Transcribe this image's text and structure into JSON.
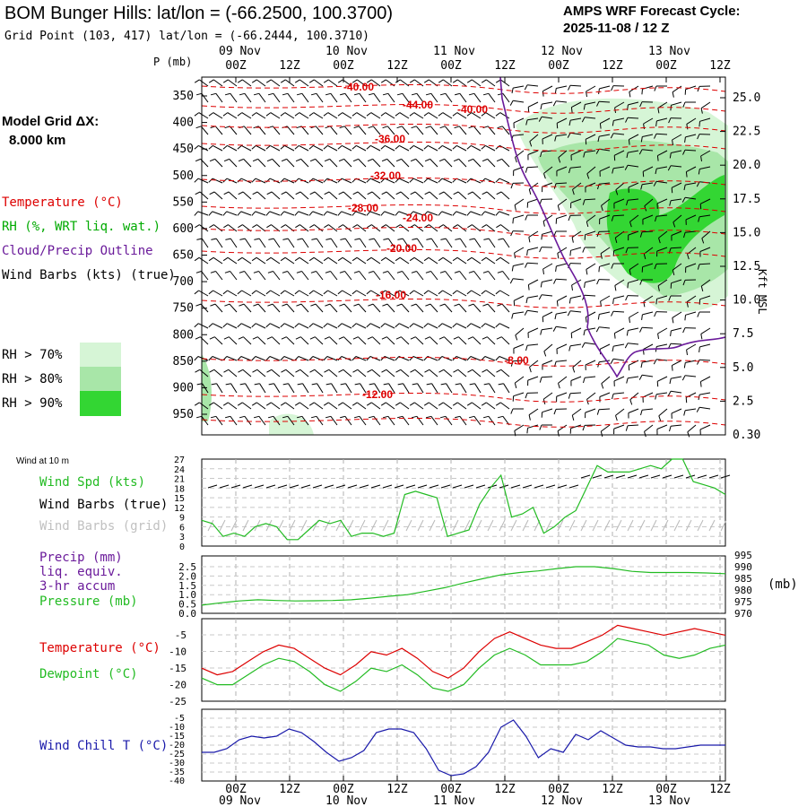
{
  "header": {
    "title": "BOM Bunger Hills:  lat/lon = (-66.2500, 100.3700)",
    "subtitle": "Grid Point (103, 417) lat/lon = (-66.2444, 100.3710)",
    "cycle_line1": "AMPS WRF Forecast Cycle:",
    "cycle_line2": "2025-11-08 / 12  Z"
  },
  "left_panel": {
    "grid_title": "Model Grid ΔX:",
    "grid_value": "8.000 km",
    "legend": [
      {
        "label": "Temperature (°C)",
        "color": "#dd0000"
      },
      {
        "label": "RH (%, WRT liq. wat.)",
        "color": "#00aa00"
      },
      {
        "label": "Cloud/Precip Outline",
        "color": "#6a1a9a"
      },
      {
        "label": "Wind Barbs (kts) (true)",
        "color": "#000000"
      }
    ],
    "rh_levels": [
      {
        "label": "RH > 70%",
        "color": "#d6f5d6"
      },
      {
        "label": "RH > 80%",
        "color": "#a8e6a8"
      },
      {
        "label": "RH > 90%",
        "color": "#33d633"
      }
    ]
  },
  "time_axis": {
    "hour_ticks": [
      "00Z",
      "12Z",
      "00Z",
      "12Z",
      "00Z",
      "12Z",
      "00Z",
      "12Z",
      "00Z",
      "12Z"
    ],
    "date_labels": [
      "09 Nov",
      "10 Nov",
      "11 Nov",
      "12 Nov",
      "13 Nov"
    ]
  },
  "colors": {
    "temperature": "#dd0000",
    "rh_70": "#d6f5d6",
    "rh_80": "#a8e6a8",
    "rh_90": "#33d633",
    "cloud": "#6a1a9a",
    "wind_speed": "#22bb22",
    "pressure": "#22bb22",
    "dewpoint": "#22bb22",
    "wind_chill": "#1a1aaa",
    "grid_barbs": "#b8b8b8"
  },
  "chart_data": [
    {
      "type": "heatmap",
      "yaxis_label": "P (mb)",
      "pressure_levels": [
        350,
        400,
        450,
        500,
        550,
        600,
        650,
        700,
        750,
        800,
        850,
        900,
        950
      ],
      "right_label": "Kft MSL",
      "height_ticks": [
        "25.0",
        "22.5",
        "20.0",
        "17.5",
        "15.0",
        "12.5",
        "10.0",
        "7.5",
        "5.0",
        "2.5",
        "0.30"
      ],
      "temperature_labels": [
        "-40.00",
        "-44.00",
        "-40.00",
        "-36.00",
        "-32.00",
        "-28.00",
        "-24.00",
        "-20.00",
        "-16.00",
        "-8.00",
        "-12.00"
      ]
    },
    {
      "type": "line",
      "title": "Wind at 10 m",
      "series_labels": [
        "Wind Spd (kts)",
        "Wind Barbs (true)",
        "Wind Barbs (grid)"
      ],
      "y_ticks": [
        "27",
        "24",
        "21",
        "18",
        "15",
        "12",
        "9",
        "6",
        "3",
        "0"
      ],
      "ylim": [
        0,
        27
      ],
      "wind_speed": [
        8,
        7,
        3,
        4,
        3,
        6,
        7,
        6,
        2,
        2,
        5,
        8,
        7,
        8,
        3,
        4,
        4,
        3,
        4,
        16,
        17,
        16,
        15,
        3,
        4,
        5,
        13,
        18,
        22,
        9,
        10,
        12,
        4,
        6,
        9,
        11,
        18,
        25,
        23,
        23,
        23,
        24,
        25,
        24,
        27,
        27,
        20,
        19,
        18,
        16
      ]
    },
    {
      "type": "line",
      "series_labels": [
        "Precip (mm)",
        "liq. equiv.",
        "3-hr accum",
        "Pressure (mb)"
      ],
      "y_ticks_left": [
        "2.5",
        "2.0",
        "1.5",
        "1.0",
        "0.5",
        "0.0"
      ],
      "y_ticks_right": [
        "995",
        "990",
        "985",
        "980",
        "975",
        "970"
      ],
      "right_unit": "(mb)",
      "pressure_mb": [
        973.5,
        974.5,
        975.3,
        975.8,
        975.5,
        975.3,
        975.4,
        975.5,
        975.8,
        976.5,
        977.3,
        978.0,
        979.5,
        981.0,
        983.0,
        984.8,
        986.5,
        987.5,
        988.2,
        989.2,
        990.0,
        990.0,
        989.2,
        988.0,
        987.5,
        987.5,
        987.5,
        987.3,
        987.0
      ]
    },
    {
      "type": "line",
      "series_labels": [
        "Temperature (°C)",
        "Dewpoint (°C)"
      ],
      "y_ticks": [
        "-5",
        "-10",
        "-15",
        "-20",
        "-25"
      ],
      "ylim": [
        -25,
        0
      ],
      "temperature": [
        -15,
        -17,
        -16,
        -13,
        -10,
        -8,
        -9,
        -12,
        -15,
        -17,
        -14,
        -10,
        -11,
        -9,
        -12,
        -16,
        -18,
        -15,
        -10,
        -6,
        -4,
        -6,
        -8,
        -9,
        -9,
        -7,
        -5,
        -2,
        -3,
        -4,
        -5,
        -4,
        -3,
        -4,
        -5
      ],
      "dewpoint": [
        -18,
        -20,
        -20,
        -17,
        -14,
        -12,
        -13,
        -16,
        -20,
        -22,
        -19,
        -15,
        -16,
        -14,
        -17,
        -21,
        -22,
        -20,
        -15,
        -11,
        -9,
        -11,
        -14,
        -14,
        -14,
        -13,
        -10,
        -6,
        -7,
        -8,
        -11,
        -12,
        -11,
        -9,
        -8
      ]
    },
    {
      "type": "line",
      "series_labels": [
        "Wind Chill T (°C)"
      ],
      "y_ticks": [
        "-5",
        "-10",
        "-15",
        "-20",
        "-25",
        "-30",
        "-35",
        "-40"
      ],
      "ylim": [
        -40,
        0
      ],
      "wind_chill": [
        -24,
        -24,
        -22,
        -17,
        -15,
        -16,
        -15,
        -11,
        -13,
        -18,
        -24,
        -29,
        -27,
        -23,
        -13,
        -11,
        -11,
        -13,
        -22,
        -34,
        -37,
        -36,
        -32,
        -24,
        -10,
        -6,
        -15,
        -27,
        -22,
        -24,
        -14,
        -17,
        -12,
        -16,
        -20,
        -21,
        -21,
        -22,
        -22,
        -21,
        -20,
        -20,
        -20
      ]
    }
  ]
}
